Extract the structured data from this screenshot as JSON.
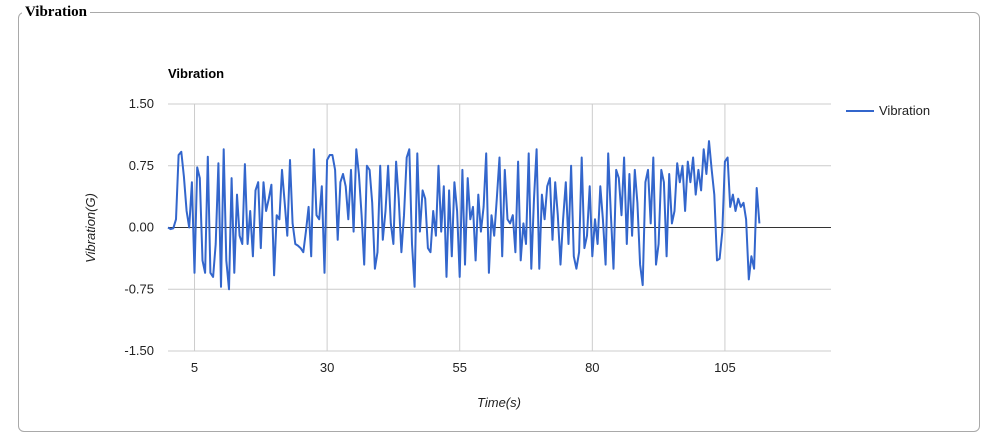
{
  "panel": {
    "title": "Vibration"
  },
  "chart_data": {
    "type": "line",
    "title": "Vibration",
    "xlabel": "Time(s)",
    "ylabel": "Vibration(G)",
    "xlim": [
      0,
      125
    ],
    "ylim": [
      -1.5,
      1.5
    ],
    "x_ticks": [
      5,
      30,
      55,
      80,
      105
    ],
    "x_tick_labels": [
      "5",
      "30",
      "55",
      "80",
      "105"
    ],
    "y_ticks": [
      1.5,
      0.75,
      0,
      -0.75,
      -1.5
    ],
    "y_tick_labels": [
      "1.50",
      "0.75",
      "0.00",
      "-0.75",
      "-1.50"
    ],
    "grid": true,
    "legend_position": "right",
    "series": [
      {
        "name": "Vibration",
        "color": "#3366cc",
        "x_start": 0,
        "x_step": 0.5,
        "values": [
          0.0,
          -0.02,
          -0.01,
          0.1,
          0.88,
          0.92,
          0.62,
          0.2,
          0.0,
          0.55,
          -0.55,
          0.73,
          0.6,
          -0.4,
          -0.55,
          0.86,
          -0.55,
          -0.6,
          -0.2,
          0.78,
          -0.72,
          0.95,
          -0.4,
          -0.75,
          0.6,
          -0.55,
          0.4,
          -0.1,
          -0.2,
          0.77,
          -0.2,
          0.2,
          -0.35,
          0.45,
          0.55,
          -0.25,
          0.55,
          0.2,
          0.35,
          0.52,
          -0.58,
          0.15,
          0.1,
          0.7,
          0.3,
          -0.1,
          0.82,
          0.05,
          -0.2,
          -0.22,
          -0.25,
          -0.3,
          -0.05,
          0.25,
          -0.35,
          0.95,
          0.15,
          0.1,
          0.5,
          -0.55,
          0.82,
          0.88,
          0.88,
          0.7,
          -0.15,
          0.55,
          0.65,
          0.5,
          0.1,
          0.7,
          -0.05,
          0.95,
          0.65,
          0.15,
          -0.45,
          0.75,
          0.7,
          0.3,
          -0.5,
          -0.3,
          0.75,
          -0.15,
          0.2,
          0.75,
          0.05,
          -0.2,
          0.8,
          0.35,
          -0.3,
          0.15,
          0.85,
          0.95,
          -0.2,
          -0.72,
          0.9,
          -0.05,
          0.45,
          0.35,
          -0.25,
          -0.3,
          0.2,
          -0.1,
          0.75,
          -0.05,
          0.5,
          -0.6,
          0.45,
          -0.35,
          0.55,
          0.2,
          -0.6,
          0.7,
          -0.45,
          0.6,
          0.1,
          0.25,
          -0.4,
          0.4,
          -0.05,
          0.25,
          0.9,
          -0.55,
          0.15,
          -0.1,
          0.35,
          0.85,
          -0.35,
          0.7,
          0.1,
          0.05,
          0.15,
          -0.3,
          0.8,
          -0.4,
          0.05,
          -0.2,
          0.9,
          -0.5,
          0.35,
          0.95,
          -0.5,
          0.4,
          0.1,
          0.5,
          0.6,
          -0.15,
          0.55,
          0.15,
          -0.45,
          0.1,
          0.55,
          -0.2,
          0.75,
          -0.35,
          -0.5,
          -0.3,
          0.85,
          -0.25,
          -0.1,
          0.5,
          -0.35,
          0.1,
          -0.2,
          0.5,
          0.1,
          -0.45,
          0.9,
          0.15,
          -0.5,
          0.7,
          0.6,
          0.15,
          0.85,
          -0.2,
          0.65,
          -0.1,
          0.7,
          0.3,
          -0.45,
          -0.7,
          0.55,
          0.7,
          0.05,
          0.85,
          -0.45,
          -0.2,
          0.7,
          0.55,
          -0.35,
          0.65,
          0.05,
          0.2,
          0.78,
          0.55,
          0.75,
          0.2,
          0.8,
          0.55,
          0.85,
          0.4,
          0.7,
          0.45,
          0.95,
          0.65,
          1.05,
          0.7,
          0.4,
          -0.4,
          -0.38,
          -0.05,
          0.8,
          0.85,
          0.25,
          0.4,
          0.2,
          0.35,
          0.25,
          0.3,
          0.1,
          -0.63,
          -0.35,
          -0.5,
          0.48,
          0.05
        ]
      }
    ]
  }
}
